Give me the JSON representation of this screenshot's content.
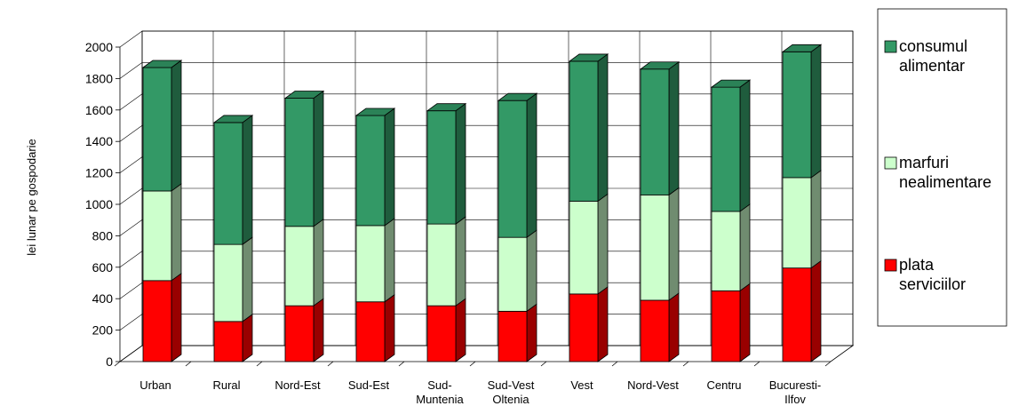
{
  "chart_data": {
    "type": "bar",
    "stacked": true,
    "three_d": true,
    "ylabel": "lei lunar pe gospodarie",
    "xlabel": "",
    "ylim": [
      0,
      2000
    ],
    "yticks": [
      0,
      200,
      400,
      600,
      800,
      1000,
      1200,
      1400,
      1600,
      1800,
      2000
    ],
    "grid": true,
    "legend_position": "right",
    "categories": [
      [
        "Urban"
      ],
      [
        "Rural"
      ],
      [
        "Nord-Est"
      ],
      [
        "Sud-Est"
      ],
      [
        "Sud-",
        "Muntenia"
      ],
      [
        "Sud-Vest",
        "Oltenia"
      ],
      [
        "Vest"
      ],
      [
        "Nord-Vest"
      ],
      [
        "Centru"
      ],
      [
        "Bucuresti-",
        "Ilfov"
      ]
    ],
    "series": [
      {
        "name": [
          "plata",
          "serviciilor"
        ],
        "color": "#ff0000",
        "values": [
          515,
          255,
          355,
          380,
          355,
          320,
          430,
          390,
          450,
          595
        ]
      },
      {
        "name": [
          "marfuri",
          "nealimentare"
        ],
        "color": "#ccffcc",
        "values": [
          570,
          490,
          505,
          485,
          520,
          470,
          590,
          670,
          505,
          575
        ]
      },
      {
        "name": [
          "consumul",
          "alimentar"
        ],
        "color": "#339966",
        "values": [
          785,
          775,
          815,
          700,
          720,
          870,
          890,
          800,
          790,
          800
        ]
      }
    ]
  }
}
